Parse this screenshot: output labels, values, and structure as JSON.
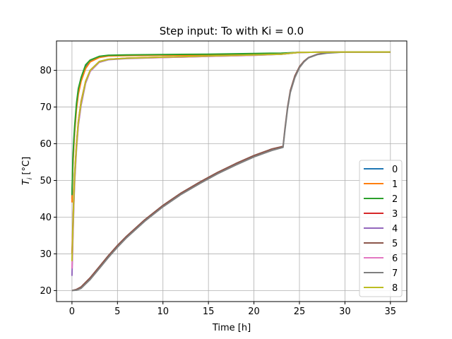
{
  "chart_data": {
    "type": "line",
    "title": "Step input: To with Ki = 0.0",
    "xlabel": "Time [h]",
    "ylabel_main": "T",
    "ylabel_sub": "i",
    "ylabel_unit": " [°C]",
    "xlim": [
      -1.7,
      36.8
    ],
    "ylim": [
      17.0,
      88.0
    ],
    "xticks": [
      0,
      5,
      10,
      15,
      20,
      25,
      30,
      35
    ],
    "yticks": [
      20,
      30,
      40,
      50,
      60,
      70,
      80
    ],
    "grid": true,
    "legend_position": "lower right",
    "series": [
      {
        "name": "0",
        "color": "#1f77b4",
        "x": [
          0,
          0.1,
          0.2,
          0.3,
          0.5,
          0.7,
          1.0,
          1.5,
          2,
          3,
          4,
          6,
          10,
          15,
          20,
          23,
          25,
          30,
          35
        ],
        "y": [
          45,
          55,
          60,
          64,
          70,
          74,
          77.5,
          81,
          82.5,
          83.6,
          84,
          84.1,
          84.2,
          84.3,
          84.5,
          84.6,
          84.9,
          85,
          85
        ]
      },
      {
        "name": "1",
        "color": "#ff7f0e",
        "x": [
          0,
          0.1,
          0.2,
          0.3,
          0.5,
          0.7,
          1.0,
          1.5,
          2,
          3,
          4,
          6,
          10,
          15,
          20,
          23,
          25,
          30,
          35
        ],
        "y": [
          44,
          54,
          59,
          63.5,
          69.5,
          73.5,
          77,
          80.5,
          82.3,
          83.5,
          83.9,
          84,
          84.1,
          84.2,
          84.4,
          84.5,
          84.9,
          85,
          85
        ]
      },
      {
        "name": "2",
        "color": "#2ca02c",
        "x": [
          0,
          0.1,
          0.2,
          0.3,
          0.5,
          0.7,
          1.0,
          1.5,
          2,
          3,
          4,
          6,
          10,
          15,
          20,
          23,
          25,
          30,
          35
        ],
        "y": [
          46,
          56,
          61,
          65,
          71,
          75,
          78,
          81.5,
          82.8,
          83.8,
          84.1,
          84.2,
          84.3,
          84.4,
          84.6,
          84.7,
          84.9,
          85,
          85
        ]
      },
      {
        "name": "3",
        "color": "#d62728",
        "x": [
          0,
          0.1,
          0.2,
          0.3,
          0.5,
          0.7,
          1.0,
          1.5,
          2,
          3,
          4,
          6,
          10,
          15,
          20,
          23,
          25,
          30,
          35
        ],
        "y": [
          30,
          38,
          46,
          52,
          60,
          66,
          71.5,
          77,
          80,
          82.4,
          83,
          83.3,
          83.6,
          83.9,
          84.2,
          84.4,
          84.9,
          85,
          85
        ]
      },
      {
        "name": "4",
        "color": "#9467bd",
        "x": [
          0,
          0.1,
          0.2,
          0.3,
          0.5,
          0.7,
          1.0,
          1.5,
          2,
          3,
          4,
          6,
          10,
          15,
          20,
          23,
          25,
          30,
          35
        ],
        "y": [
          24,
          34,
          43,
          50,
          58.5,
          65,
          70.5,
          76.5,
          79.7,
          82.2,
          82.9,
          83.2,
          83.5,
          83.8,
          84.1,
          84.4,
          84.9,
          85,
          85
        ]
      },
      {
        "name": "5",
        "color": "#8c564b",
        "x": [
          0,
          0.5,
          1,
          2,
          3,
          4,
          5,
          6,
          8,
          10,
          12,
          14,
          16,
          18,
          20,
          22,
          23.2,
          23.4,
          23.7,
          24,
          24.5,
          25,
          25.5,
          26,
          27,
          28,
          30,
          32,
          35
        ],
        "y": [
          20,
          20.3,
          21,
          23.5,
          26.5,
          29.5,
          32.3,
          34.8,
          39.3,
          43.2,
          46.6,
          49.5,
          52.2,
          54.6,
          56.8,
          58.6,
          59.3,
          64,
          70,
          74.5,
          78.5,
          81,
          82.5,
          83.5,
          84.4,
          84.8,
          85,
          85,
          85
        ]
      },
      {
        "name": "6",
        "color": "#e377c2",
        "x": [
          0,
          0.1,
          0.2,
          0.3,
          0.5,
          0.7,
          1.0,
          1.5,
          2,
          3,
          4,
          6,
          10,
          15,
          20,
          23,
          25,
          30,
          35
        ],
        "y": [
          26,
          35,
          44,
          51,
          59,
          65.5,
          71,
          76.8,
          79.8,
          82.3,
          83,
          83.3,
          83.5,
          83.8,
          84.1,
          84.4,
          84.9,
          85,
          85
        ]
      },
      {
        "name": "7",
        "color": "#7f7f7f",
        "x": [
          0,
          0.5,
          1,
          2,
          3,
          4,
          5,
          6,
          8,
          10,
          12,
          14,
          16,
          18,
          20,
          22,
          23.2,
          23.4,
          23.7,
          24,
          24.5,
          25,
          25.5,
          26,
          27,
          28,
          30,
          32,
          35
        ],
        "y": [
          20,
          20.1,
          20.6,
          23,
          26,
          29,
          31.8,
          34.4,
          38.9,
          42.8,
          46.2,
          49.1,
          51.8,
          54.2,
          56.4,
          58.2,
          59,
          63.5,
          69.5,
          74,
          78,
          80.7,
          82.3,
          83.4,
          84.3,
          84.7,
          85,
          85,
          85
        ]
      },
      {
        "name": "8",
        "color": "#bcbd22",
        "x": [
          0,
          0.1,
          0.2,
          0.3,
          0.5,
          0.7,
          1.0,
          1.5,
          2,
          3,
          4,
          6,
          10,
          15,
          20,
          23,
          25,
          30,
          35
        ],
        "y": [
          28,
          37,
          45,
          51.5,
          59.5,
          66,
          71.2,
          77,
          80,
          82.4,
          83,
          83.3,
          83.6,
          83.9,
          84.2,
          84.4,
          84.9,
          85,
          85
        ]
      }
    ]
  }
}
